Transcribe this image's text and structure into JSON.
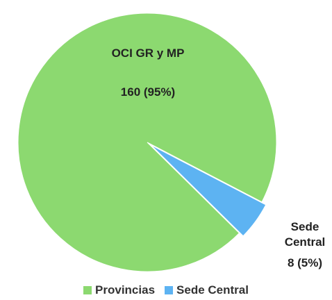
{
  "chart_data": {
    "type": "pie",
    "categories": [
      "Provincias",
      "Sede Central"
    ],
    "values": [
      160,
      8
    ],
    "value_labels": [
      "160 (95%)",
      "8 (5%)"
    ],
    "slice_labels": [
      "OCI GR y MP",
      "Sede Central"
    ],
    "colors": [
      "#8cd970",
      "#5db3f2"
    ],
    "legend": "bottom"
  }
}
